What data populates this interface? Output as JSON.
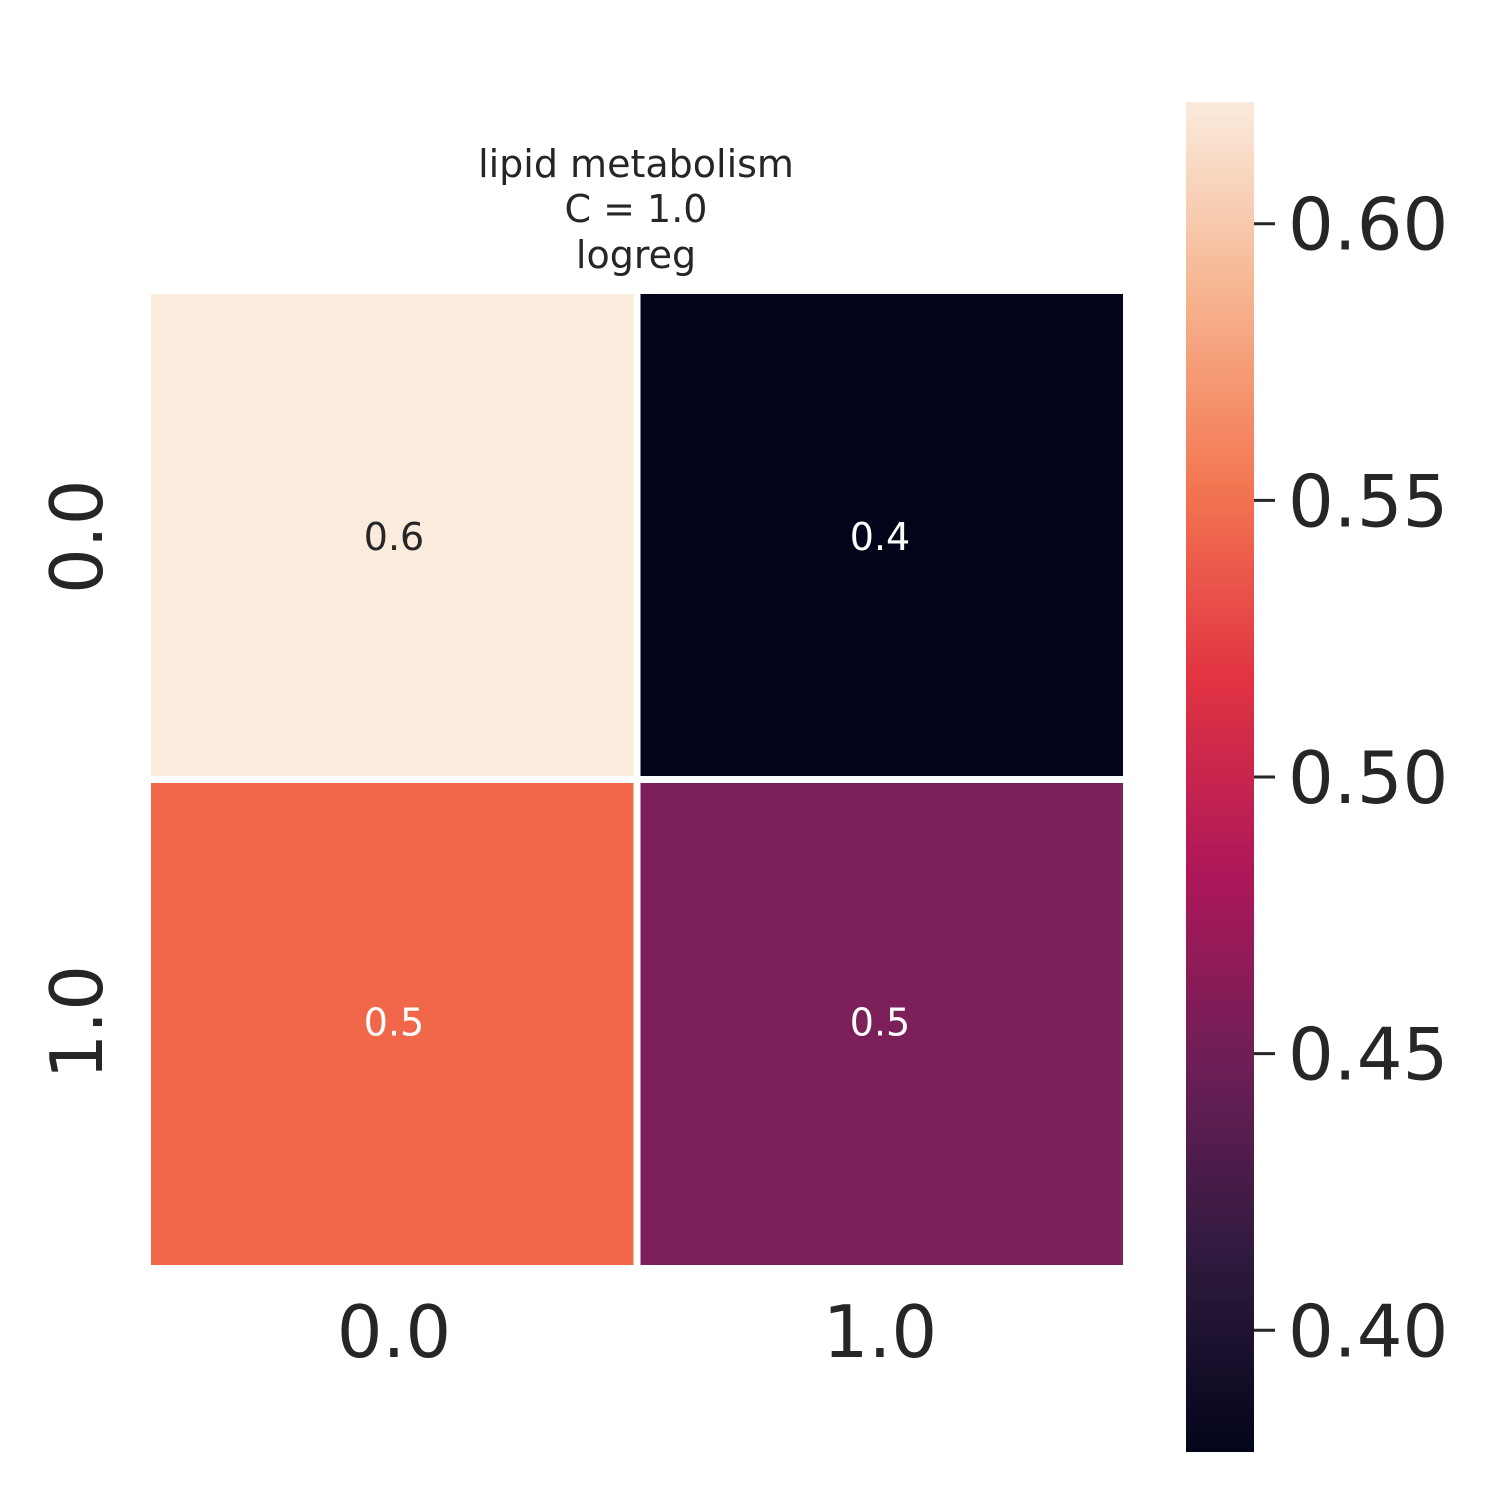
{
  "chart_data": {
    "type": "heatmap",
    "title_lines": [
      "lipid metabolism",
      "C = 1.0",
      "logreg"
    ],
    "row_labels": [
      "0.0",
      "1.0"
    ],
    "col_labels": [
      "0.0",
      "1.0"
    ],
    "values": [
      [
        0.622,
        0.378
      ],
      [
        0.5455,
        0.4545
      ]
    ],
    "annotations": [
      [
        "0.6",
        "0.4"
      ],
      [
        "0.5",
        "0.5"
      ]
    ],
    "colormap": "rocket",
    "colorbar": {
      "vmin": 0.378,
      "vmax": 0.622,
      "ticks": [
        0.4,
        0.45,
        0.5,
        0.55,
        0.6
      ],
      "tick_labels": [
        "0.40",
        "0.45",
        "0.50",
        "0.55",
        "0.60"
      ]
    },
    "cell_colors": [
      [
        "#FAEBDD",
        "#03051A"
      ],
      [
        "#F06849",
        "#7B2058"
      ]
    ],
    "annotation_colors": [
      [
        "#262626",
        "#ffffff"
      ],
      [
        "#ffffff",
        "#ffffff"
      ]
    ],
    "rocket_stops": [
      "#03051A",
      "#2E1A3E",
      "#6C1F56",
      "#AD1759",
      "#E13342",
      "#F37651",
      "#F6B48F",
      "#FAEBDD"
    ]
  }
}
